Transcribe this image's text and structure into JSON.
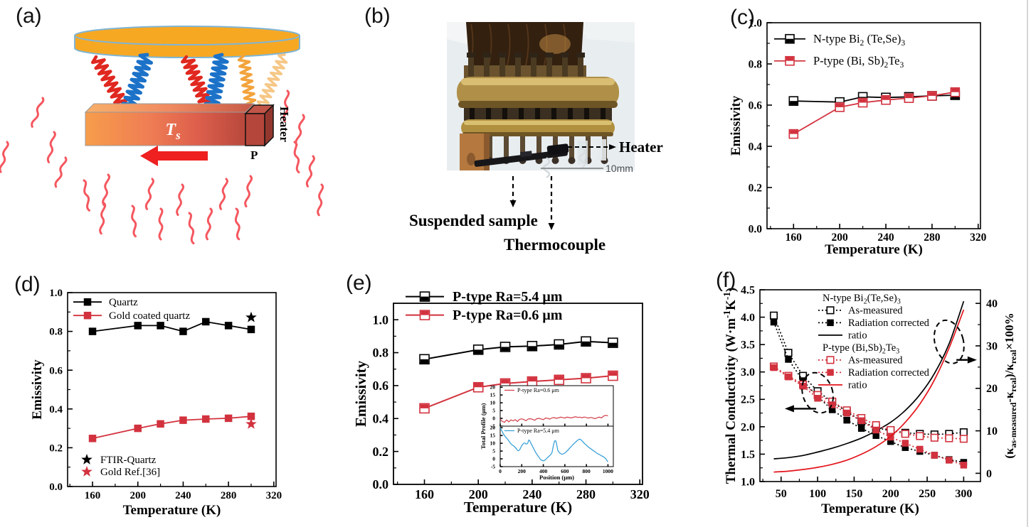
{
  "page": {
    "background": "#ffffff",
    "edge_line_x": 1443
  },
  "colors": {
    "series_black": "#000000",
    "series_red": "#d2323e",
    "ratio_red": "#e3141c",
    "inset_blue": "#2e9bd6",
    "inset_red": "#d23b47",
    "disk_orange": "#f7a823",
    "disk_outline": "#7fb5d5",
    "spring_red": "#e02820",
    "spring_blue": "#1c72c8",
    "spring_orange": "#f3a33c",
    "spring_pale": "#f6c786",
    "squiggle_red": "#f4575f",
    "arrow_red": "#ee2020",
    "bar_grad": [
      "#f69d4b",
      "#ef7d54",
      "#dd5f4c",
      "#b8483c"
    ],
    "heater_front": "#b5463b",
    "heater_top": "#c25548",
    "heater_side": "#93372e",
    "photo_bg": "#e8edf0",
    "brass": "#b09048",
    "brass_light": "#d9bd72",
    "brass_dark": "#6e5526",
    "cylinder": "#33200f",
    "copper": "#b5793f",
    "rod": "#17171a"
  },
  "panels": {
    "a": {
      "label": "(a)",
      "sample_label": "T_{s}",
      "heater_label": "Heater",
      "p_label": "P"
    },
    "b": {
      "label": "(b)",
      "heater_label": "Heater",
      "scale_label": "10mm",
      "sample_label": "Suspended sample",
      "thermocouple_label": "Thermocouple"
    },
    "c": {
      "label": "(c)"
    },
    "d": {
      "label": "(d)"
    },
    "e": {
      "label": "(e)"
    },
    "f": {
      "label": "(f)"
    }
  },
  "chart_data": [
    {
      "id": "c",
      "type": "line",
      "title": "",
      "xlabel": "Temperature (K)",
      "ylabel": "Emissivity",
      "xlim": [
        137,
        322
      ],
      "ylim": [
        0,
        1.0
      ],
      "xticks": [
        160,
        200,
        240,
        280,
        320
      ],
      "yticks": [
        0.0,
        0.2,
        0.4,
        0.6,
        0.8,
        1.0
      ],
      "xminor": 20,
      "yminor": 0.1,
      "xdec": 0,
      "ydec": 1,
      "x": [
        160,
        200,
        220,
        240,
        260,
        280,
        300
      ],
      "series": [
        {
          "name": "N-type Bi_{2} (Te,Se)_{3}",
          "color": "#000000",
          "marker": "half-bottom",
          "line": "solid",
          "values": [
            0.62,
            0.615,
            0.64,
            0.637,
            0.64,
            0.645,
            0.648
          ]
        },
        {
          "name": "P-type (Bi, Sb)_{2}Te_{3}",
          "color": "#d2323e",
          "marker": "half-top",
          "line": "solid",
          "values": [
            0.46,
            0.59,
            0.612,
            0.625,
            0.634,
            0.645,
            0.663
          ]
        }
      ],
      "legend": {
        "items": [
          {
            "ref": 0
          },
          {
            "ref": 1
          }
        ],
        "position": "top-left"
      }
    },
    {
      "id": "d",
      "type": "line",
      "title": "",
      "xlabel": "Temperature (K)",
      "ylabel": "Emissivity",
      "xlim": [
        138,
        322
      ],
      "ylim": [
        0,
        1.0
      ],
      "xticks": [
        160,
        200,
        240,
        280,
        320
      ],
      "yticks": [
        0.0,
        0.2,
        0.4,
        0.6,
        0.8,
        1.0
      ],
      "xminor": 20,
      "yminor": 0.1,
      "xdec": 0,
      "ydec": 1,
      "x": [
        160,
        200,
        220,
        240,
        260,
        280,
        300
      ],
      "series": [
        {
          "name": "Quartz",
          "color": "#000000",
          "marker": "square",
          "line": "solid",
          "values": [
            0.8,
            0.83,
            0.83,
            0.8,
            0.85,
            0.83,
            0.81
          ]
        },
        {
          "name": "Gold coated quartz",
          "color": "#d2323e",
          "marker": "square",
          "line": "solid",
          "values": [
            0.248,
            0.3,
            0.323,
            0.342,
            0.348,
            0.352,
            0.362
          ]
        },
        {
          "name": "FTIR-Quartz",
          "color": "#000000",
          "marker": "star",
          "line": "none",
          "x": [
            300
          ],
          "values": [
            0.872
          ]
        },
        {
          "name": "Gold Ref.[36]",
          "color": "#d2323e",
          "marker": "star",
          "line": "none",
          "x": [
            300
          ],
          "values": [
            0.322
          ]
        }
      ],
      "legend": {
        "items": [
          {
            "ref": 0
          },
          {
            "ref": 1
          }
        ],
        "position": "top-left"
      },
      "legend2": {
        "items": [
          {
            "ref": 2
          },
          {
            "ref": 3
          }
        ],
        "position": "bottom-left"
      }
    },
    {
      "id": "e",
      "type": "line",
      "title": "",
      "xlabel": "Temperature (K)",
      "ylabel": "Emissivity",
      "xlim": [
        137,
        322
      ],
      "ylim": [
        0,
        1.1
      ],
      "xticks": [
        160,
        200,
        240,
        280,
        320
      ],
      "yticks": [
        0.0,
        0.2,
        0.4,
        0.6,
        0.8,
        1.0
      ],
      "xminor": 20,
      "yminor": 0.1,
      "xdec": 0,
      "ydec": 1,
      "x": [
        160,
        200,
        220,
        240,
        260,
        280,
        300
      ],
      "series": [
        {
          "name": "P-type Ra=5.4 μm",
          "color": "#000000",
          "marker": "half-bottom",
          "line": "solid",
          "values": [
            0.76,
            0.818,
            0.835,
            0.84,
            0.85,
            0.868,
            0.86
          ]
        },
        {
          "name": "P-type Ra=0.6 μm",
          "color": "#d2323e",
          "marker": "half-top",
          "line": "solid",
          "values": [
            0.462,
            0.59,
            0.613,
            0.625,
            0.635,
            0.645,
            0.66
          ]
        }
      ],
      "legend": {
        "items": [
          {
            "ref": 0
          },
          {
            "ref": 1
          }
        ],
        "position": "top-left"
      }
    },
    {
      "id": "ei1",
      "type": "line",
      "title": "",
      "xlabel": "",
      "ylabel": "Total Profile (μm)",
      "xlim": [
        0,
        1050
      ],
      "ylim": [
        -5,
        21
      ],
      "xticks": [
        0,
        200,
        400,
        600,
        800,
        1000
      ],
      "yticks": [
        -5,
        0,
        5,
        10,
        15,
        20
      ],
      "xdec": 0,
      "ydec": 0,
      "x": [
        0,
        20,
        40,
        60,
        80,
        100,
        120,
        140,
        160,
        180,
        200,
        220,
        240,
        260,
        280,
        300,
        320,
        340,
        360,
        380,
        400,
        420,
        440,
        460,
        480,
        500,
        520,
        540,
        560,
        580,
        600,
        620,
        640,
        660,
        680,
        700,
        720,
        740,
        760,
        780,
        800,
        820,
        840,
        860,
        880,
        900,
        920,
        940,
        960,
        980,
        1000
      ],
      "series": [
        {
          "name": "P-type  Ra=0.6 μm",
          "color": "#d23b47",
          "marker": "none",
          "line": "solid",
          "values": [
            -0.5,
            -2,
            -2.5,
            -1,
            -2.2,
            -1,
            -1.6,
            -0.8,
            -2,
            -0.6,
            -0.3,
            -0.8,
            -1.5,
            -0.4,
            -0.2,
            -0.6,
            -1.2,
            -0.2,
            0,
            -0.4,
            -0.8,
            0.2,
            0,
            -0.5,
            0.3,
            0.5,
            0,
            0.3,
            0.8,
            0.5,
            0.2,
            0.8,
            0.5,
            0.3,
            0.7,
            1,
            0.6,
            0.8,
            0.4,
            0.9,
            0.5,
            0.2,
            0.6,
            0.3,
            -0.2,
            0.4,
            0.8,
            0.3,
            1.5,
            2,
            1.6
          ]
        }
      ],
      "legend": {
        "items": [
          {
            "ref": 0
          }
        ],
        "position": "top-left"
      }
    },
    {
      "id": "ei2",
      "type": "line",
      "title": "",
      "xlabel": "Position (μm)",
      "ylabel": "",
      "xlim": [
        0,
        1050
      ],
      "ylim": [
        -5,
        21
      ],
      "xticks": [
        0,
        200,
        400,
        600,
        800,
        1000
      ],
      "yticks": [
        -5,
        0,
        5,
        10,
        15,
        20
      ],
      "xdec": 0,
      "ydec": 0,
      "series": [
        {
          "name": "P-type Ra=5.4 μm",
          "color": "#2e9bd6",
          "marker": "none",
          "line": "solid",
          "smooth": true,
          "x": [
            0,
            15,
            30,
            50,
            70,
            90,
            110,
            130,
            150,
            165,
            180,
            200,
            215,
            230,
            240,
            255,
            265,
            275,
            285,
            300,
            315,
            330,
            345,
            360,
            375,
            390,
            405,
            420,
            435,
            450,
            465,
            480,
            495,
            505,
            515,
            525,
            535,
            550,
            565,
            580,
            600,
            620,
            640,
            660,
            680,
            700,
            720,
            740,
            760,
            780,
            800,
            820,
            840,
            860,
            880,
            900,
            920,
            940,
            960,
            980,
            1000
          ],
          "values": [
            20,
            18,
            16,
            14,
            12.5,
            10.5,
            9,
            8,
            6.5,
            5.2,
            5.8,
            8.5,
            9.8,
            10.2,
            9.5,
            10,
            12,
            11.5,
            10,
            8,
            6,
            4,
            2.5,
            1,
            -0.5,
            -1,
            -1.2,
            -0.5,
            0.5,
            1.5,
            2.5,
            4,
            9,
            11.3,
            11.5,
            9,
            5.5,
            4,
            3.2,
            3,
            3.8,
            5,
            6.5,
            8,
            9.5,
            10.8,
            12,
            12.6,
            11.5,
            10,
            8.8,
            7.5,
            6.5,
            5.5,
            4.5,
            3.5,
            2.8,
            2,
            1.2,
            0,
            -2
          ]
        }
      ],
      "legend": {
        "items": [
          {
            "ref": 0
          }
        ],
        "position": "top-left"
      }
    },
    {
      "id": "f",
      "type": "line",
      "title": "",
      "xlabel": "Temperature  (K)",
      "ylabel": "Thermal Conductivity (W·m^{-1}K^{-1})",
      "y2label": "(κ_{as-measured}-κ_{real})/κ_{real}×100%",
      "xlim": [
        21,
        323
      ],
      "ylim": [
        1.0,
        4.5
      ],
      "y2lim": [
        -1.94,
        43.2
      ],
      "xticks": [
        50,
        100,
        150,
        200,
        250,
        300
      ],
      "yticks": [
        1.0,
        1.5,
        2.0,
        2.5,
        3.0,
        3.5,
        4.0,
        4.5
      ],
      "y2ticks": [
        0,
        10,
        20,
        30,
        40
      ],
      "xminor": 25,
      "yminor": 0.25,
      "y2minor": 5,
      "xdec": 0,
      "ydec": 1,
      "y2dec": 0,
      "x": [
        40,
        60,
        80,
        100,
        120,
        140,
        160,
        180,
        200,
        220,
        240,
        260,
        280,
        300
      ],
      "series": [
        {
          "name": "As-measured",
          "color": "#000000",
          "marker": "open",
          "line": "dotted",
          "values": [
            4.03,
            3.35,
            2.93,
            2.65,
            2.45,
            2.28,
            2.1,
            1.98,
            1.93,
            1.89,
            1.87,
            1.86,
            1.87,
            1.9
          ]
        },
        {
          "name": "Radiation corrected",
          "color": "#000000",
          "marker": "square",
          "line": "dotted",
          "values": [
            3.91,
            3.23,
            2.84,
            2.55,
            2.31,
            2.12,
            1.97,
            1.84,
            1.73,
            1.62,
            1.55,
            1.48,
            1.4,
            1.35
          ]
        },
        {
          "name": "ratio",
          "color": "#000000",
          "marker": "none",
          "line": "solid",
          "smooth": true,
          "axis": "y2",
          "values": [
            3.4,
            3.7,
            4.2,
            5.0,
            5.9,
            7.0,
            8.3,
            10.0,
            12.0,
            14.8,
            18.5,
            23.5,
            30.5,
            40.5
          ]
        },
        {
          "name": "As-measured",
          "color": "#d2323e",
          "marker": "open",
          "line": "dotted",
          "values": [
            3.1,
            2.93,
            2.77,
            2.58,
            2.46,
            2.3,
            2.16,
            2.03,
            1.94,
            1.87,
            1.83,
            1.8,
            1.79,
            1.78
          ]
        },
        {
          "name": "Radiation corrected",
          "color": "#d2323e",
          "marker": "square",
          "line": "dotted",
          "values": [
            3.08,
            2.91,
            2.74,
            2.52,
            2.4,
            2.25,
            2.11,
            1.94,
            1.81,
            1.7,
            1.59,
            1.48,
            1.39,
            1.3
          ]
        },
        {
          "name": "ratio",
          "color": "#e3141c",
          "marker": "none",
          "line": "solid",
          "smooth": true,
          "axis": "y2",
          "values": [
            0.3,
            0.5,
            0.9,
            1.4,
            2.1,
            3.1,
            4.5,
            6.3,
            8.7,
            12.0,
            16.3,
            22.0,
            29.5,
            38.5
          ]
        }
      ],
      "legend": {
        "items": [
          {
            "text": "N-type Bi_{2}(Te,Se)_{3}"
          },
          {
            "ref": 0
          },
          {
            "ref": 1
          },
          {
            "ref": 2
          },
          {
            "text": "P-type (Bi,Sb)_{2}Te_{3}"
          },
          {
            "ref": 3
          },
          {
            "ref": 4
          },
          {
            "ref": 5
          }
        ],
        "position": "top-center"
      },
      "annotations": [
        {
          "type": "ellipse",
          "cx": 100,
          "cy": 2.62,
          "rx": 21,
          "ry": 29,
          "rot": -18
        },
        {
          "type": "arrow",
          "x1": 98,
          "y1": 2.33,
          "x2": 55,
          "y2": 2.33
        },
        {
          "type": "ellipse",
          "cx": 280,
          "cy": 3.55,
          "rx": 20,
          "ry": 31,
          "rot": -15
        },
        {
          "type": "arrow",
          "x1": 290,
          "y1": 3.22,
          "x2": 318,
          "y2": 3.22
        }
      ]
    }
  ]
}
